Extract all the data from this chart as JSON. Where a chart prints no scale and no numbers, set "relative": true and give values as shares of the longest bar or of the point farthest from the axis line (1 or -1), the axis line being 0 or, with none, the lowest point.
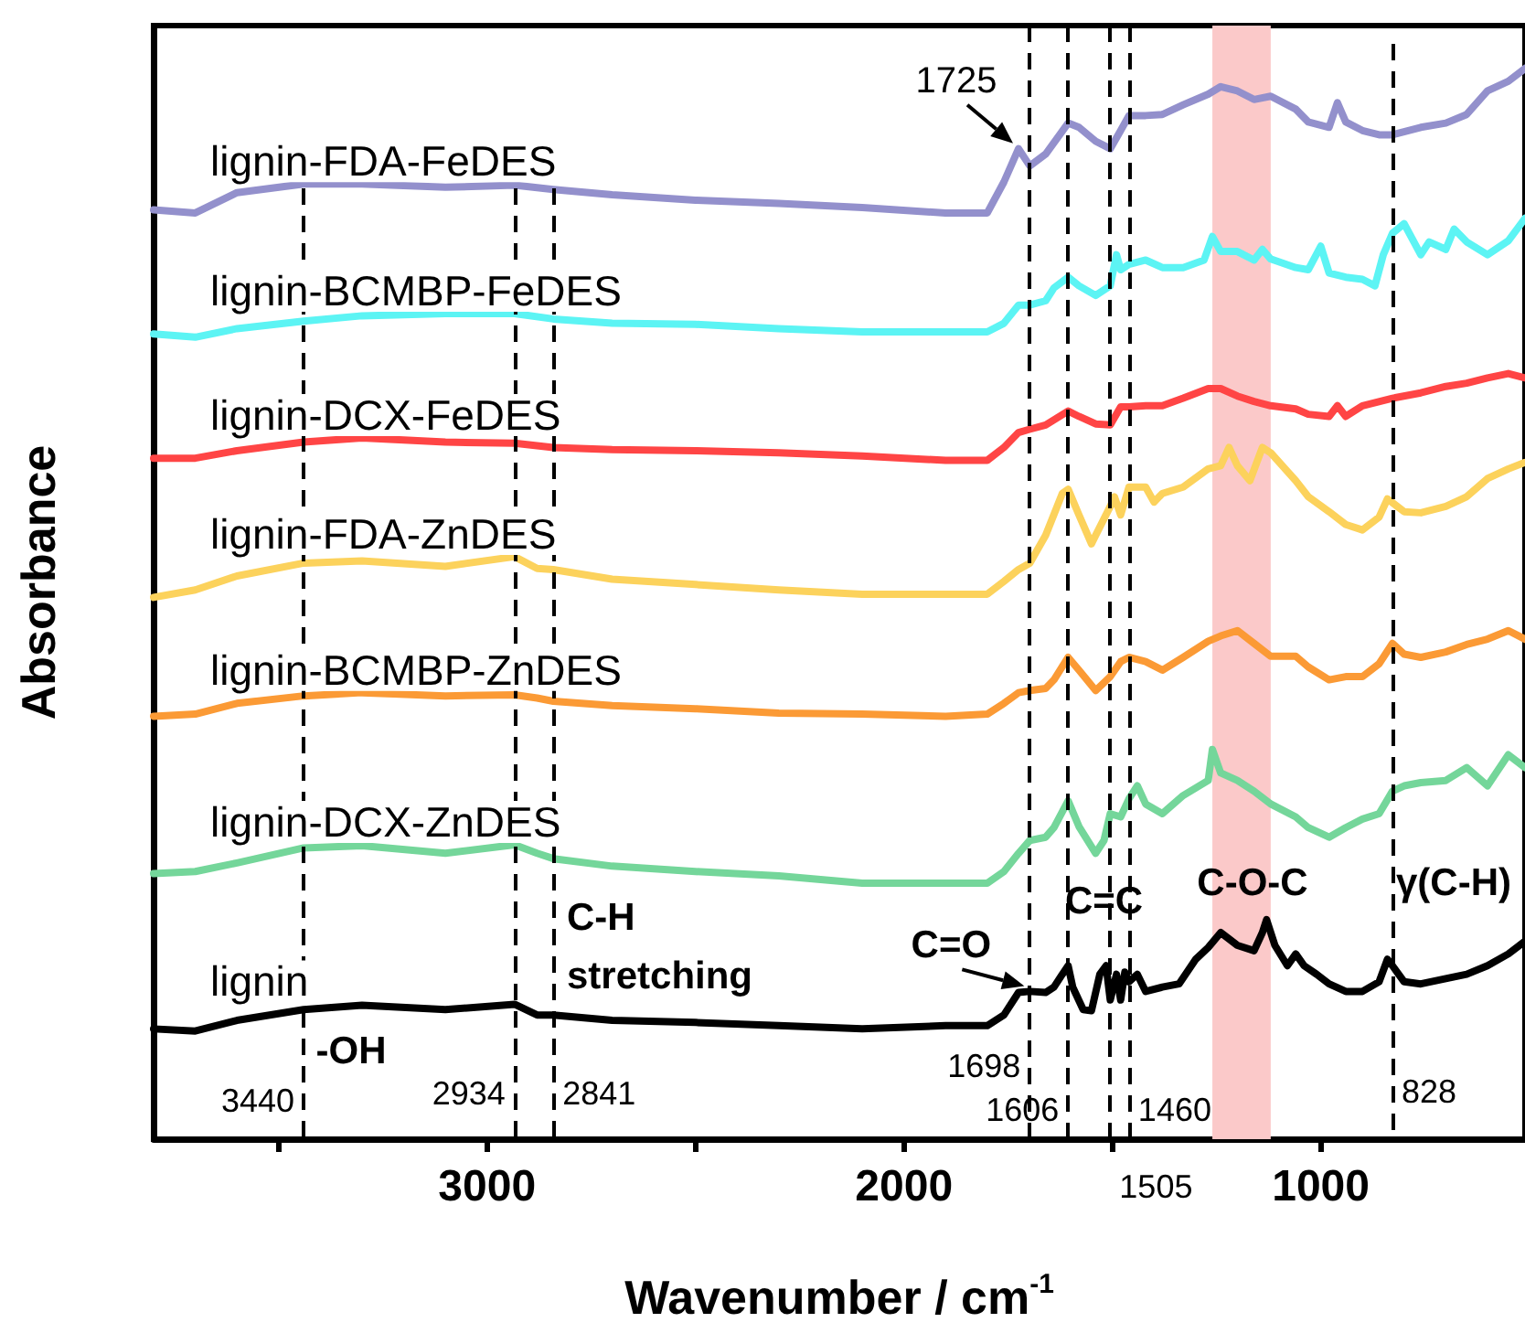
{
  "chart_data": {
    "type": "line",
    "relative": true,
    "xlabel": "Wavenumber / cm$^{-1}$",
    "ylabel": "Absorbance",
    "xlim": [
      3800,
      510
    ],
    "xticks": [
      {
        "value": 3500,
        "label": null
      },
      3000,
      {
        "value": 2500,
        "label": null
      },
      2000,
      {
        "value": 1500,
        "label": null
      },
      1000
    ],
    "tick_labels": "x",
    "legend": false,
    "grid": false,
    "marker": "none",
    "line_style": "solid",
    "series": [
      {
        "name": "lignin-FDA-FeDES",
        "color": "#9390cc",
        "x": [
          3800,
          3700,
          3600,
          3440,
          3300,
          3100,
          2934,
          2841,
          2700,
          2500,
          2300,
          2100,
          1900,
          1800,
          1760,
          1725,
          1698,
          1660,
          1606,
          1580,
          1540,
          1505,
          1480,
          1460,
          1420,
          1380,
          1330,
          1270,
          1240,
          1200,
          1160,
          1120,
          1060,
          1030,
          980,
          960,
          940,
          900,
          860,
          828,
          760,
          700,
          650,
          600,
          550,
          510
        ],
        "values": [
          0.868,
          0.865,
          0.884,
          0.892,
          0.892,
          0.889,
          0.891,
          0.887,
          0.882,
          0.877,
          0.874,
          0.87,
          0.865,
          0.865,
          0.894,
          0.925,
          0.909,
          0.92,
          0.949,
          0.945,
          0.932,
          0.925,
          0.942,
          0.956,
          0.956,
          0.957,
          0.966,
          0.976,
          0.983,
          0.979,
          0.971,
          0.974,
          0.962,
          0.95,
          0.945,
          0.968,
          0.95,
          0.942,
          0.938,
          0.938,
          0.945,
          0.949,
          0.957,
          0.979,
          0.988,
          1
        ]
      },
      {
        "name": "lignin-BCMBP-FeDES",
        "color": "#5cf4f4",
        "x": [
          3800,
          3700,
          3600,
          3440,
          3300,
          3100,
          2934,
          2841,
          2700,
          2500,
          2300,
          2100,
          1900,
          1800,
          1760,
          1725,
          1698,
          1660,
          1640,
          1606,
          1580,
          1540,
          1505,
          1490,
          1480,
          1460,
          1420,
          1380,
          1330,
          1280,
          1260,
          1240,
          1200,
          1160,
          1140,
          1120,
          1060,
          1030,
          1000,
          980,
          940,
          900,
          870,
          850,
          828,
          800,
          760,
          740,
          700,
          680,
          650,
          600,
          550,
          510
        ],
        "values": [
          0.752,
          0.749,
          0.757,
          0.764,
          0.769,
          0.771,
          0.771,
          0.766,
          0.762,
          0.761,
          0.757,
          0.754,
          0.754,
          0.754,
          0.762,
          0.779,
          0.779,
          0.783,
          0.795,
          0.805,
          0.797,
          0.788,
          0.797,
          0.826,
          0.812,
          0.817,
          0.821,
          0.814,
          0.814,
          0.821,
          0.843,
          0.829,
          0.829,
          0.821,
          0.831,
          0.822,
          0.814,
          0.812,
          0.834,
          0.809,
          0.805,
          0.803,
          0.797,
          0.826,
          0.846,
          0.855,
          0.826,
          0.838,
          0.831,
          0.85,
          0.838,
          0.826,
          0.839,
          0.86
        ]
      },
      {
        "name": "lignin-DCX-FeDES",
        "color": "#ff4545",
        "x": [
          3800,
          3700,
          3600,
          3440,
          3300,
          3100,
          2934,
          2841,
          2700,
          2500,
          2300,
          2100,
          1900,
          1800,
          1760,
          1725,
          1698,
          1660,
          1606,
          1580,
          1540,
          1505,
          1480,
          1460,
          1420,
          1380,
          1330,
          1270,
          1240,
          1200,
          1160,
          1120,
          1060,
          1030,
          980,
          960,
          940,
          900,
          828,
          760,
          700,
          650,
          600,
          550,
          510
        ],
        "values": [
          0.636,
          0.636,
          0.643,
          0.651,
          0.655,
          0.651,
          0.65,
          0.646,
          0.644,
          0.643,
          0.641,
          0.638,
          0.634,
          0.634,
          0.646,
          0.66,
          0.663,
          0.667,
          0.68,
          0.675,
          0.668,
          0.667,
          0.684,
          0.684,
          0.685,
          0.685,
          0.692,
          0.701,
          0.701,
          0.694,
          0.689,
          0.685,
          0.682,
          0.677,
          0.675,
          0.685,
          0.675,
          0.685,
          0.692,
          0.697,
          0.703,
          0.706,
          0.711,
          0.715,
          0.711
        ]
      },
      {
        "name": "lignin-FDA-ZnDES",
        "color": "#fcd25c",
        "x": [
          3800,
          3700,
          3600,
          3440,
          3300,
          3100,
          2934,
          2880,
          2841,
          2700,
          2500,
          2300,
          2100,
          1900,
          1800,
          1760,
          1725,
          1698,
          1660,
          1620,
          1606,
          1580,
          1550,
          1540,
          1505,
          1495,
          1480,
          1460,
          1420,
          1400,
          1380,
          1330,
          1270,
          1240,
          1220,
          1200,
          1170,
          1140,
          1120,
          1060,
          1030,
          980,
          940,
          900,
          860,
          840,
          800,
          760,
          700,
          650,
          600,
          550,
          510
        ],
        "values": [
          0.506,
          0.513,
          0.526,
          0.538,
          0.54,
          0.535,
          0.544,
          0.533,
          0.532,
          0.523,
          0.518,
          0.513,
          0.509,
          0.509,
          0.509,
          0.521,
          0.532,
          0.538,
          0.564,
          0.603,
          0.607,
          0.583,
          0.556,
          0.564,
          0.591,
          0.6,
          0.583,
          0.609,
          0.609,
          0.595,
          0.603,
          0.609,
          0.626,
          0.629,
          0.646,
          0.629,
          0.615,
          0.646,
          0.641,
          0.615,
          0.6,
          0.586,
          0.574,
          0.569,
          0.581,
          0.598,
          0.586,
          0.585,
          0.591,
          0.6,
          0.617,
          0.626,
          0.632
        ]
      },
      {
        "name": "lignin-BCMBP-ZnDES",
        "color": "#fb9a35",
        "x": [
          3800,
          3700,
          3600,
          3440,
          3300,
          3100,
          2934,
          2880,
          2841,
          2700,
          2500,
          2300,
          2100,
          1900,
          1800,
          1760,
          1725,
          1698,
          1660,
          1640,
          1606,
          1580,
          1540,
          1505,
          1480,
          1460,
          1420,
          1380,
          1330,
          1270,
          1240,
          1200,
          1160,
          1120,
          1060,
          1030,
          980,
          940,
          900,
          860,
          828,
          800,
          760,
          700,
          650,
          600,
          550,
          510
        ],
        "values": [
          0.395,
          0.397,
          0.407,
          0.414,
          0.417,
          0.414,
          0.415,
          0.412,
          0.409,
          0.405,
          0.402,
          0.398,
          0.397,
          0.395,
          0.397,
          0.407,
          0.417,
          0.419,
          0.421,
          0.429,
          0.45,
          0.438,
          0.419,
          0.432,
          0.446,
          0.45,
          0.446,
          0.438,
          0.45,
          0.465,
          0.47,
          0.475,
          0.463,
          0.451,
          0.451,
          0.441,
          0.429,
          0.432,
          0.432,
          0.444,
          0.463,
          0.453,
          0.45,
          0.455,
          0.462,
          0.467,
          0.475,
          0.467
        ]
      },
      {
        "name": "lignin-DCX-ZnDES",
        "color": "#74d69a",
        "x": [
          3800,
          3700,
          3600,
          3440,
          3300,
          3100,
          2934,
          2880,
          2841,
          2700,
          2500,
          2300,
          2100,
          1900,
          1800,
          1760,
          1725,
          1698,
          1660,
          1640,
          1606,
          1580,
          1540,
          1520,
          1505,
          1480,
          1460,
          1440,
          1420,
          1380,
          1330,
          1270,
          1260,
          1240,
          1200,
          1160,
          1120,
          1060,
          1030,
          980,
          940,
          900,
          860,
          828,
          800,
          760,
          700,
          650,
          600,
          550,
          510
        ],
        "values": [
          0.248,
          0.25,
          0.258,
          0.272,
          0.274,
          0.267,
          0.275,
          0.267,
          0.262,
          0.255,
          0.25,
          0.246,
          0.239,
          0.239,
          0.239,
          0.25,
          0.267,
          0.279,
          0.282,
          0.291,
          0.316,
          0.292,
          0.267,
          0.279,
          0.304,
          0.301,
          0.318,
          0.33,
          0.313,
          0.304,
          0.321,
          0.335,
          0.364,
          0.342,
          0.335,
          0.325,
          0.313,
          0.301,
          0.291,
          0.282,
          0.291,
          0.299,
          0.304,
          0.325,
          0.33,
          0.333,
          0.335,
          0.347,
          0.33,
          0.359,
          0.347
        ]
      },
      {
        "name": "lignin",
        "color": "#000000",
        "x": [
          3800,
          3700,
          3600,
          3440,
          3300,
          3100,
          2934,
          2880,
          2841,
          2700,
          2500,
          2300,
          2100,
          1900,
          1800,
          1760,
          1725,
          1698,
          1660,
          1640,
          1620,
          1606,
          1595,
          1570,
          1550,
          1530,
          1515,
          1505,
          1490,
          1480,
          1470,
          1460,
          1440,
          1420,
          1380,
          1340,
          1300,
          1270,
          1240,
          1200,
          1160,
          1140,
          1130,
          1110,
          1080,
          1060,
          1040,
          1010,
          980,
          940,
          900,
          860,
          840,
          828,
          800,
          760,
          700,
          650,
          600,
          550,
          510
        ],
        "values": [
          0.103,
          0.101,
          0.111,
          0.121,
          0.125,
          0.121,
          0.126,
          0.116,
          0.116,
          0.111,
          0.109,
          0.106,
          0.103,
          0.106,
          0.106,
          0.116,
          0.137,
          0.138,
          0.137,
          0.142,
          0.154,
          0.162,
          0.142,
          0.121,
          0.12,
          0.154,
          0.162,
          0.13,
          0.154,
          0.13,
          0.156,
          0.147,
          0.154,
          0.138,
          0.142,
          0.145,
          0.168,
          0.179,
          0.193,
          0.181,
          0.176,
          0.193,
          0.205,
          0.181,
          0.162,
          0.173,
          0.162,
          0.154,
          0.145,
          0.138,
          0.138,
          0.147,
          0.168,
          0.162,
          0.147,
          0.145,
          0.15,
          0.154,
          0.162,
          0.173,
          0.185
        ]
      }
    ],
    "ref_lines": [
      {
        "axis": "x",
        "value": 3440,
        "label": "3440"
      },
      {
        "axis": "x",
        "value": 2934,
        "label": "2934"
      },
      {
        "axis": "x",
        "value": 2841,
        "label": "2841"
      },
      {
        "axis": "x",
        "value": 1698,
        "label": "1698"
      },
      {
        "axis": "x",
        "value": 1606,
        "label": "1606"
      },
      {
        "axis": "x",
        "value": 1505,
        "label": "1505"
      },
      {
        "axis": "x",
        "value": 1460,
        "label": "1460"
      },
      {
        "axis": "x",
        "value": 828,
        "label": "828"
      }
    ],
    "bands": [
      {
        "axis": "x",
        "from": 1260,
        "to": 1120,
        "color": "#fbc9c9"
      }
    ],
    "annotations": [
      {
        "text": "1725",
        "x": 1725,
        "y": 0.925
      },
      {
        "text": "C=O",
        "x": 1698,
        "y": 0.138
      },
      "-OH",
      "C-H stretching",
      {
        "text": "C=C",
        "x": 1520,
        "y": 0.222
      },
      "C-O-C",
      "γ(C-H)"
    ]
  }
}
